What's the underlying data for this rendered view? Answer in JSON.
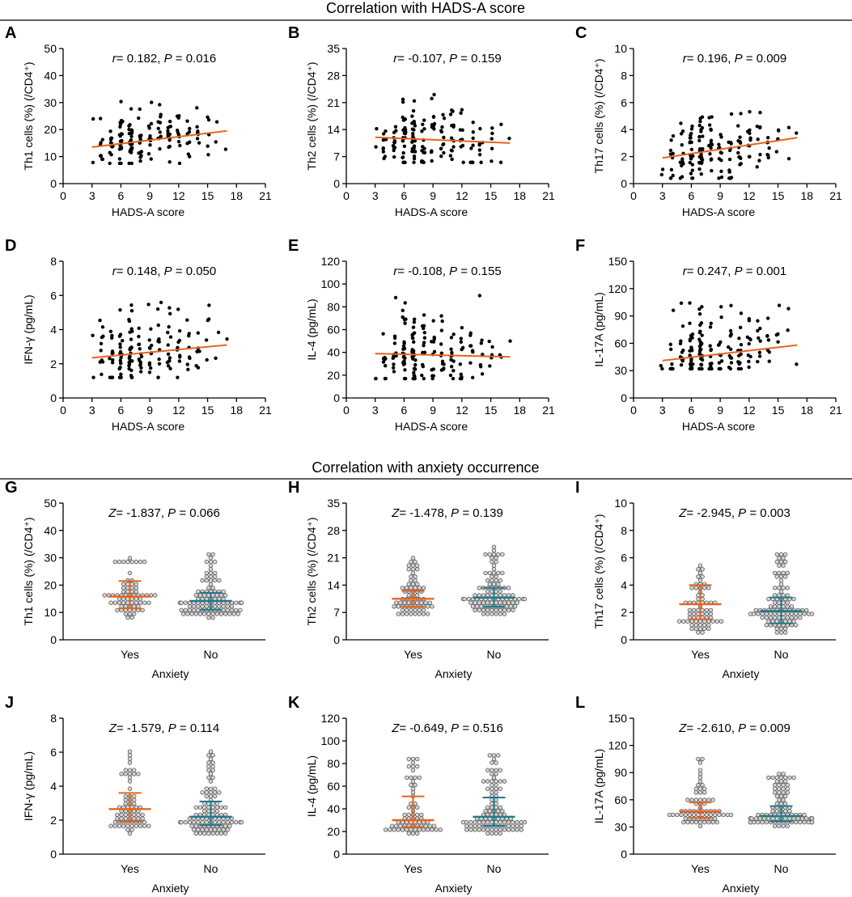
{
  "colors": {
    "axis": "#000000",
    "trend": "#e8641e",
    "yes": "#e8641e",
    "no": "#1f7a8c",
    "dot_fill": "#d8d8d8",
    "dot_stroke": "#555555"
  },
  "section_titles": {
    "top": "Correlation with HADS-A score",
    "bottom": "Correlation with anxiety occurrence"
  },
  "chart_data": [
    {
      "id": "A",
      "type": "scatter",
      "letter": "A",
      "xlabel": "HADS-A score",
      "ylabel": "Th1 cells (%) (/CD4⁺)",
      "xlim": [
        0,
        21
      ],
      "xticks": [
        0,
        3,
        6,
        9,
        12,
        15,
        18,
        21
      ],
      "ylim": [
        0,
        50
      ],
      "yticks": [
        0,
        10,
        20,
        30,
        40,
        50
      ],
      "annotation": {
        "stat": "r",
        "stat_value": "= 0.182, ",
        "p_label": "P",
        "p_value": "= 0.016"
      },
      "trend": {
        "x1": 3,
        "y1": 13.5,
        "x2": 17,
        "y2": 19.5
      },
      "seed": 11,
      "ymin_data": 7.5,
      "ymax_data": 30.5,
      "spread": 0.16,
      "outliers": []
    },
    {
      "id": "B",
      "type": "scatter",
      "letter": "B",
      "xlabel": "HADS-A score",
      "ylabel": "Th2 cells (%) (/CD4⁺)",
      "xlim": [
        0,
        21
      ],
      "xticks": [
        0,
        3,
        6,
        9,
        12,
        15,
        18,
        21
      ],
      "ylim": [
        0,
        35
      ],
      "yticks": [
        0,
        7,
        14,
        21,
        28,
        35
      ],
      "annotation": {
        "stat": "r",
        "stat_value": "= -0.107, ",
        "p_label": "P",
        "p_value": "= 0.159"
      },
      "trend": {
        "x1": 3,
        "y1": 12,
        "x2": 17,
        "y2": 10.5
      },
      "seed": 23,
      "ymin_data": 5.5,
      "ymax_data": 24,
      "spread": 0.16,
      "outliers": []
    },
    {
      "id": "C",
      "type": "scatter",
      "letter": "C",
      "xlabel": "HADS-A score",
      "ylabel": "Th17 cells (%) (/CD4⁺)",
      "xlim": [
        0,
        21
      ],
      "xticks": [
        0,
        3,
        6,
        9,
        12,
        15,
        18,
        21
      ],
      "ylim": [
        0,
        10
      ],
      "yticks": [
        0,
        2,
        4,
        6,
        8,
        10
      ],
      "annotation": {
        "stat": "r",
        "stat_value": "= 0.196, ",
        "p_label": "P",
        "p_value": "= 0.009"
      },
      "trend": {
        "x1": 3,
        "y1": 1.9,
        "x2": 17,
        "y2": 3.4
      },
      "seed": 37,
      "ymin_data": 0.4,
      "ymax_data": 6.4,
      "spread": 0.2,
      "outliers": []
    },
    {
      "id": "D",
      "type": "scatter",
      "letter": "D",
      "xlabel": "HADS-A score",
      "ylabel": "IFN-γ (pg/mL)",
      "xlim": [
        0,
        21
      ],
      "xticks": [
        0,
        3,
        6,
        9,
        12,
        15,
        18,
        21
      ],
      "ylim": [
        0,
        8
      ],
      "yticks": [
        0,
        2,
        4,
        6,
        8
      ],
      "annotation": {
        "stat": "r",
        "stat_value": "= 0.148, ",
        "p_label": "P",
        "p_value": "= 0.050"
      },
      "trend": {
        "x1": 3,
        "y1": 2.35,
        "x2": 17,
        "y2": 3.1
      },
      "seed": 41,
      "ymin_data": 1.2,
      "ymax_data": 6.1,
      "spread": 0.18,
      "outliers": []
    },
    {
      "id": "E",
      "type": "scatter",
      "letter": "E",
      "xlabel": "HADS-A score",
      "ylabel": "IL-4 (pg/mL)",
      "xlim": [
        0,
        21
      ],
      "xticks": [
        0,
        3,
        6,
        9,
        12,
        15,
        18,
        21
      ],
      "ylim": [
        0,
        120
      ],
      "yticks": [
        0,
        20,
        40,
        60,
        80,
        100,
        120
      ],
      "annotation": {
        "stat": "r",
        "stat_value": "= -0.108, ",
        "p_label": "P",
        "p_value": "= 0.155"
      },
      "trend": {
        "x1": 3,
        "y1": 39,
        "x2": 17,
        "y2": 36
      },
      "seed": 53,
      "ymin_data": 17,
      "ymax_data": 91,
      "spread": 0.14,
      "outliers": []
    },
    {
      "id": "F",
      "type": "scatter",
      "letter": "F",
      "xlabel": "HADS-A score",
      "ylabel": "IL-17A (pg/mL)",
      "xlim": [
        0,
        21
      ],
      "xticks": [
        0,
        3,
        6,
        9,
        12,
        15,
        18,
        21
      ],
      "ylim": [
        0,
        150
      ],
      "yticks": [
        0,
        30,
        60,
        90,
        120,
        150
      ],
      "annotation": {
        "stat": "r",
        "stat_value": "= 0.247, ",
        "p_label": "P",
        "p_value": "= 0.001"
      },
      "trend": {
        "x1": 3,
        "y1": 41,
        "x2": 17,
        "y2": 58
      },
      "seed": 67,
      "ymin_data": 32,
      "ymax_data": 105,
      "spread": 0.1,
      "outliers": []
    },
    {
      "id": "G",
      "type": "dot-strip",
      "letter": "G",
      "xlabel": "Anxiety",
      "ylabel": "Th1 cells (%) (/CD4⁺)",
      "categories": [
        "Yes",
        "No"
      ],
      "ylim": [
        0,
        50
      ],
      "yticks": [
        0,
        10,
        20,
        30,
        40,
        50
      ],
      "annotation": {
        "stat": "Z",
        "stat_value": "= -1.837, ",
        "p_label": "P",
        "p_value": "= 0.066"
      },
      "groups": [
        {
          "name": "Yes",
          "median": 15.8,
          "q1": 11.5,
          "q3": 21.5,
          "min": 8,
          "max": 30.5,
          "n": 70
        },
        {
          "name": "No",
          "median": 14.2,
          "q1": 11.0,
          "q3": 17.2,
          "min": 7.5,
          "max": 31,
          "n": 105
        }
      ],
      "seed": 71
    },
    {
      "id": "H",
      "type": "dot-strip",
      "letter": "H",
      "xlabel": "Anxiety",
      "ylabel": "Th2 cells (%) (/CD4⁺)",
      "categories": [
        "Yes",
        "No"
      ],
      "ylim": [
        0,
        35
      ],
      "yticks": [
        0,
        7,
        14,
        21,
        28,
        35
      ],
      "annotation": {
        "stat": "Z",
        "stat_value": "= -1.478, ",
        "p_label": "P",
        "p_value": "= 0.139"
      },
      "groups": [
        {
          "name": "Yes",
          "median": 10.5,
          "q1": 8.5,
          "q3": 12.5,
          "min": 6,
          "max": 22,
          "n": 70
        },
        {
          "name": "No",
          "median": 10.8,
          "q1": 8.5,
          "q3": 13.3,
          "min": 5.5,
          "max": 24,
          "n": 105
        }
      ],
      "seed": 83
    },
    {
      "id": "I",
      "type": "dot-strip",
      "letter": "I",
      "xlabel": "Anxiety",
      "ylabel": "Th17 cells (%) (/CD4⁺)",
      "categories": [
        "Yes",
        "No"
      ],
      "ylim": [
        0,
        10
      ],
      "yticks": [
        0,
        2,
        4,
        6,
        8,
        10
      ],
      "annotation": {
        "stat": "Z",
        "stat_value": "= -2.945, ",
        "p_label": "P",
        "p_value": "= 0.003"
      },
      "groups": [
        {
          "name": "Yes",
          "median": 2.6,
          "q1": 1.5,
          "q3": 4.0,
          "min": 0.5,
          "max": 5.9,
          "n": 70
        },
        {
          "name": "No",
          "median": 2.1,
          "q1": 1.2,
          "q3": 3.1,
          "min": 0.4,
          "max": 6.4,
          "n": 105
        }
      ],
      "seed": 97
    },
    {
      "id": "J",
      "type": "dot-strip",
      "letter": "J",
      "xlabel": "Anxiety",
      "ylabel": "IFN-γ (pg/mL)",
      "categories": [
        "Yes",
        "No"
      ],
      "ylim": [
        0,
        8
      ],
      "yticks": [
        0,
        2,
        4,
        6,
        8
      ],
      "annotation": {
        "stat": "Z",
        "stat_value": "= -1.579, ",
        "p_label": "P",
        "p_value": "= 0.114"
      },
      "groups": [
        {
          "name": "Yes",
          "median": 2.65,
          "q1": 1.9,
          "q3": 3.6,
          "min": 1.2,
          "max": 6.0,
          "n": 70
        },
        {
          "name": "No",
          "median": 2.2,
          "q1": 1.7,
          "q3": 3.1,
          "min": 1.1,
          "max": 6.1,
          "n": 105
        }
      ],
      "seed": 101
    },
    {
      "id": "K",
      "type": "dot-strip",
      "letter": "K",
      "xlabel": "Anxiety",
      "ylabel": "IL-4 (pg/mL)",
      "categories": [
        "Yes",
        "No"
      ],
      "ylim": [
        0,
        120
      ],
      "yticks": [
        0,
        20,
        40,
        60,
        80,
        100,
        120
      ],
      "annotation": {
        "stat": "Z",
        "stat_value": "= -0.649, ",
        "p_label": "P",
        "p_value": "= 0.516"
      },
      "groups": [
        {
          "name": "Yes",
          "median": 30,
          "q1": 24,
          "q3": 51,
          "min": 18,
          "max": 85,
          "n": 70
        },
        {
          "name": "No",
          "median": 33,
          "q1": 25,
          "q3": 50,
          "min": 17,
          "max": 91,
          "n": 105
        }
      ],
      "seed": 113
    },
    {
      "id": "L",
      "type": "dot-strip",
      "letter": "L",
      "xlabel": "Anxiety",
      "ylabel": "IL-17A (pg/mL)",
      "categories": [
        "Yes",
        "No"
      ],
      "ylim": [
        0,
        150
      ],
      "yticks": [
        0,
        30,
        60,
        90,
        120,
        150
      ],
      "annotation": {
        "stat": "Z",
        "stat_value": "= -2.610, ",
        "p_label": "P",
        "p_value": "= 0.009"
      },
      "groups": [
        {
          "name": "Yes",
          "median": 47,
          "q1": 40,
          "q3": 57,
          "min": 32,
          "max": 105,
          "n": 70
        },
        {
          "name": "No",
          "median": 42,
          "q1": 36,
          "q3": 53,
          "min": 30,
          "max": 90,
          "n": 105
        }
      ],
      "seed": 127
    }
  ]
}
